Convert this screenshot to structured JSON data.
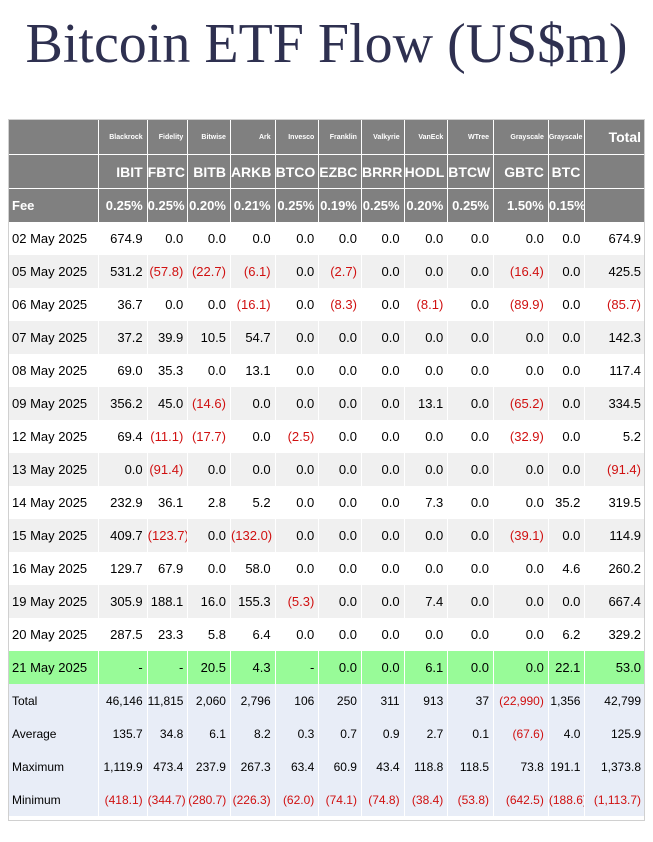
{
  "title": "Bitcoin ETF Flow (US$m)",
  "header": {
    "issuers": [
      "Blackrock",
      "Fidelity",
      "Bitwise",
      "Ark",
      "Invesco",
      "Franklin",
      "Valkyrie",
      "VanEck",
      "WTree",
      "Grayscale",
      "Grayscale"
    ],
    "tickers": [
      "IBIT",
      "FBTC",
      "BITB",
      "ARKB",
      "BTCO",
      "EZBC",
      "BRRR",
      "HODL",
      "BTCW",
      "GBTC",
      "BTC"
    ],
    "total_label": "Total",
    "fee_label": "Fee",
    "fees": [
      "0.25%",
      "0.25%",
      "0.20%",
      "0.21%",
      "0.25%",
      "0.19%",
      "0.25%",
      "0.20%",
      "0.25%",
      "1.50%",
      "0.15%"
    ]
  },
  "rows": [
    {
      "date": "02 May 2025",
      "values": [
        "674.9",
        "0.0",
        "0.0",
        "0.0",
        "0.0",
        "0.0",
        "0.0",
        "0.0",
        "0.0",
        "0.0",
        "0.0"
      ],
      "total": "674.9"
    },
    {
      "date": "05 May 2025",
      "values": [
        "531.2",
        "(57.8)",
        "(22.7)",
        "(6.1)",
        "0.0",
        "(2.7)",
        "0.0",
        "0.0",
        "0.0",
        "(16.4)",
        "0.0"
      ],
      "total": "425.5"
    },
    {
      "date": "06 May 2025",
      "values": [
        "36.7",
        "0.0",
        "0.0",
        "(16.1)",
        "0.0",
        "(8.3)",
        "0.0",
        "(8.1)",
        "0.0",
        "(89.9)",
        "0.0"
      ],
      "total": "(85.7)"
    },
    {
      "date": "07 May 2025",
      "values": [
        "37.2",
        "39.9",
        "10.5",
        "54.7",
        "0.0",
        "0.0",
        "0.0",
        "0.0",
        "0.0",
        "0.0",
        "0.0"
      ],
      "total": "142.3"
    },
    {
      "date": "08 May 2025",
      "values": [
        "69.0",
        "35.3",
        "0.0",
        "13.1",
        "0.0",
        "0.0",
        "0.0",
        "0.0",
        "0.0",
        "0.0",
        "0.0"
      ],
      "total": "117.4"
    },
    {
      "date": "09 May 2025",
      "values": [
        "356.2",
        "45.0",
        "(14.6)",
        "0.0",
        "0.0",
        "0.0",
        "0.0",
        "13.1",
        "0.0",
        "(65.2)",
        "0.0"
      ],
      "total": "334.5"
    },
    {
      "date": "12 May 2025",
      "values": [
        "69.4",
        "(11.1)",
        "(17.7)",
        "0.0",
        "(2.5)",
        "0.0",
        "0.0",
        "0.0",
        "0.0",
        "(32.9)",
        "0.0"
      ],
      "total": "5.2"
    },
    {
      "date": "13 May 2025",
      "values": [
        "0.0",
        "(91.4)",
        "0.0",
        "0.0",
        "0.0",
        "0.0",
        "0.0",
        "0.0",
        "0.0",
        "0.0",
        "0.0"
      ],
      "total": "(91.4)"
    },
    {
      "date": "14 May 2025",
      "values": [
        "232.9",
        "36.1",
        "2.8",
        "5.2",
        "0.0",
        "0.0",
        "0.0",
        "7.3",
        "0.0",
        "0.0",
        "35.2"
      ],
      "total": "319.5"
    },
    {
      "date": "15 May 2025",
      "values": [
        "409.7",
        "(123.7)",
        "0.0",
        "(132.0)",
        "0.0",
        "0.0",
        "0.0",
        "0.0",
        "0.0",
        "(39.1)",
        "0.0"
      ],
      "total": "114.9"
    },
    {
      "date": "16 May 2025",
      "values": [
        "129.7",
        "67.9",
        "0.0",
        "58.0",
        "0.0",
        "0.0",
        "0.0",
        "0.0",
        "0.0",
        "0.0",
        "4.6"
      ],
      "total": "260.2"
    },
    {
      "date": "19 May 2025",
      "values": [
        "305.9",
        "188.1",
        "16.0",
        "155.3",
        "(5.3)",
        "0.0",
        "0.0",
        "7.4",
        "0.0",
        "0.0",
        "0.0"
      ],
      "total": "667.4"
    },
    {
      "date": "20 May 2025",
      "values": [
        "287.5",
        "23.3",
        "5.8",
        "6.4",
        "0.0",
        "0.0",
        "0.0",
        "0.0",
        "0.0",
        "0.0",
        "6.2"
      ],
      "total": "329.2"
    },
    {
      "date": "21 May 2025",
      "values": [
        "-",
        "-",
        "20.5",
        "4.3",
        "-",
        "0.0",
        "0.0",
        "6.1",
        "0.0",
        "0.0",
        "22.1"
      ],
      "total": "53.0",
      "highlight": true
    }
  ],
  "stats": [
    {
      "label": "Total",
      "values": [
        "46,146",
        "11,815",
        "2,060",
        "2,796",
        "106",
        "250",
        "311",
        "913",
        "37",
        "(22,990)",
        "1,356"
      ],
      "total": "42,799"
    },
    {
      "label": "Average",
      "values": [
        "135.7",
        "34.8",
        "6.1",
        "8.2",
        "0.3",
        "0.7",
        "0.9",
        "2.7",
        "0.1",
        "(67.6)",
        "4.0"
      ],
      "total": "125.9"
    },
    {
      "label": "Maximum",
      "values": [
        "1,119.9",
        "473.4",
        "237.9",
        "267.3",
        "63.4",
        "60.9",
        "43.4",
        "118.8",
        "118.5",
        "73.8",
        "191.1"
      ],
      "total": "1,373.8"
    },
    {
      "label": "Minimum",
      "values": [
        "(418.1)",
        "(344.7)",
        "(280.7)",
        "(226.3)",
        "(62.0)",
        "(74.1)",
        "(74.8)",
        "(38.4)",
        "(53.8)",
        "(642.5)",
        "(188.6)"
      ],
      "total": "(1,113.7)"
    }
  ],
  "colors": {
    "header_bg": "#808080",
    "negative": "#d01010",
    "highlight_row": "#98fb98",
    "stats_bg": "#e8edf7",
    "title": "#2e3050"
  }
}
